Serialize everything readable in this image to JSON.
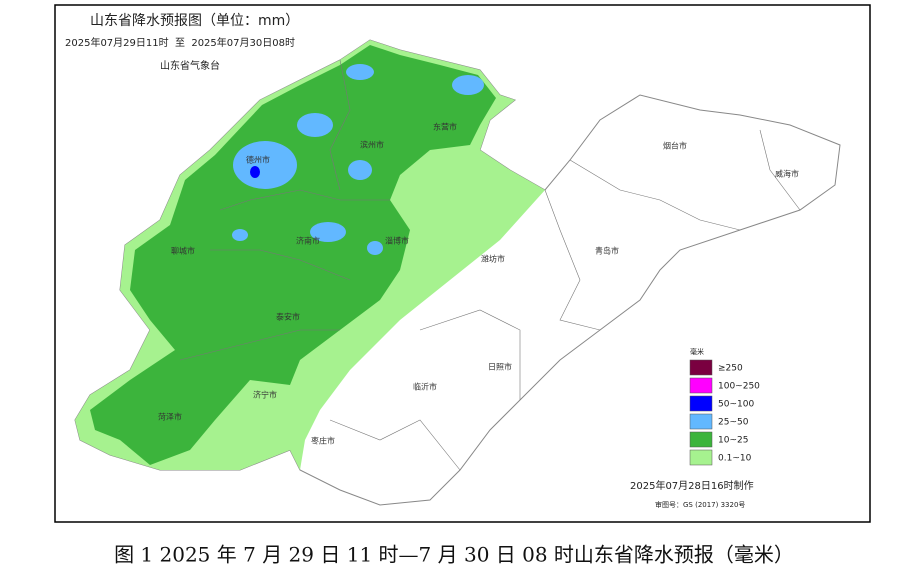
{
  "header": {
    "title": "山东省降水预报图（单位：mm）",
    "time_range": "2025年07月29日11时  至  2025年07月30日08时",
    "agency": "山东省气象台"
  },
  "cities": [
    "德州市",
    "滨州市",
    "东营市",
    "烟台市",
    "威海市",
    "聊城市",
    "济南市",
    "淄博市",
    "潍坊市",
    "青岛市",
    "泰安市",
    "日照市",
    "临沂市",
    "济宁市",
    "菏泽市",
    "枣庄市"
  ],
  "legend": {
    "title": "毫米",
    "items": [
      {
        "label": "≥250",
        "color": "#7a0040"
      },
      {
        "label": "100~250",
        "color": "#ff00ff"
      },
      {
        "label": "50~100",
        "color": "#0000ff"
      },
      {
        "label": "25~50",
        "color": "#62b8ff"
      },
      {
        "label": "10~25",
        "color": "#3cb43c"
      },
      {
        "label": "0.1~10",
        "color": "#a6f28f"
      }
    ]
  },
  "footer": {
    "produced": "2025年07月28日16时制作",
    "review_no": "审图号：GS (2017) 3320号"
  },
  "caption": "图 1 2025 年 7 月 29 日 11 时—7 月 30 日 08 时山东省降水预报（毫米）"
}
